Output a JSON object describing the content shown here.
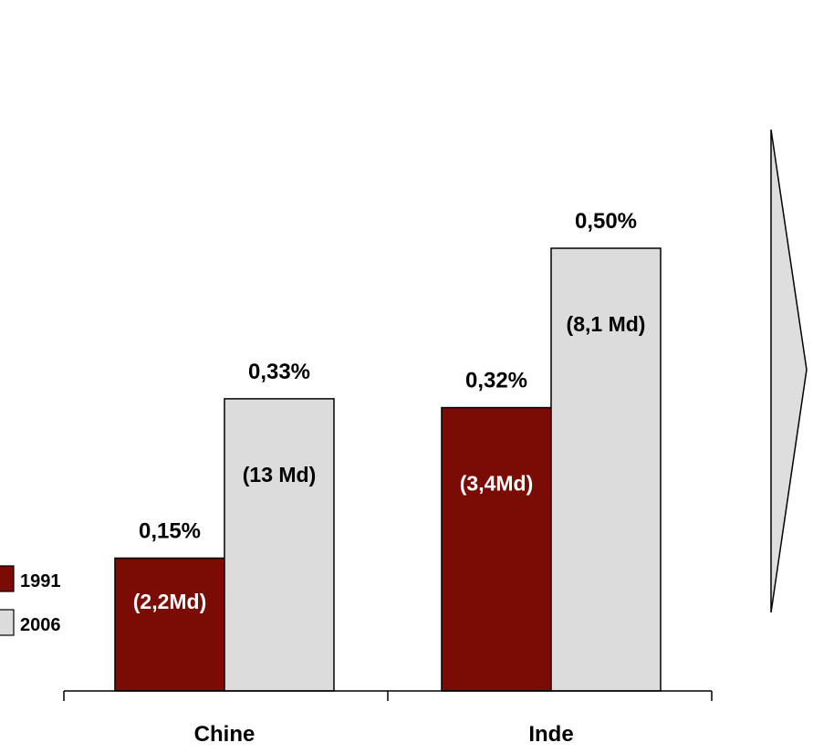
{
  "chart_data": {
    "type": "bar",
    "categories": [
      "Chine",
      "Inde"
    ],
    "series": [
      {
        "name": "1991",
        "values": [
          0.15,
          0.32
        ],
        "labels": [
          "0,15%",
          "0,32%"
        ],
        "inner_labels": [
          "(2,2Md)",
          "(3,4Md)"
        ],
        "color": "#7b0c04"
      },
      {
        "name": "2006",
        "values": [
          0.33,
          0.5
        ],
        "labels": [
          "0,33%",
          "0,50%"
        ],
        "inner_labels": [
          "(13 Md)",
          "(8,1 Md)"
        ],
        "color": "#dcdcdc"
      }
    ],
    "ylim": [
      0,
      0.6
    ],
    "grid": false,
    "legend": "left",
    "unit": "%"
  },
  "colors": {
    "series_1991": "#7b0c04",
    "series_2006": "#dcdcdc",
    "arrow_fill": "#dedede",
    "stroke": "#000000",
    "inner_text_dark_bar": "#ffffff",
    "inner_text_light_bar": "#000000"
  },
  "decoration": {
    "arrow": "right-pointing-arrow"
  }
}
